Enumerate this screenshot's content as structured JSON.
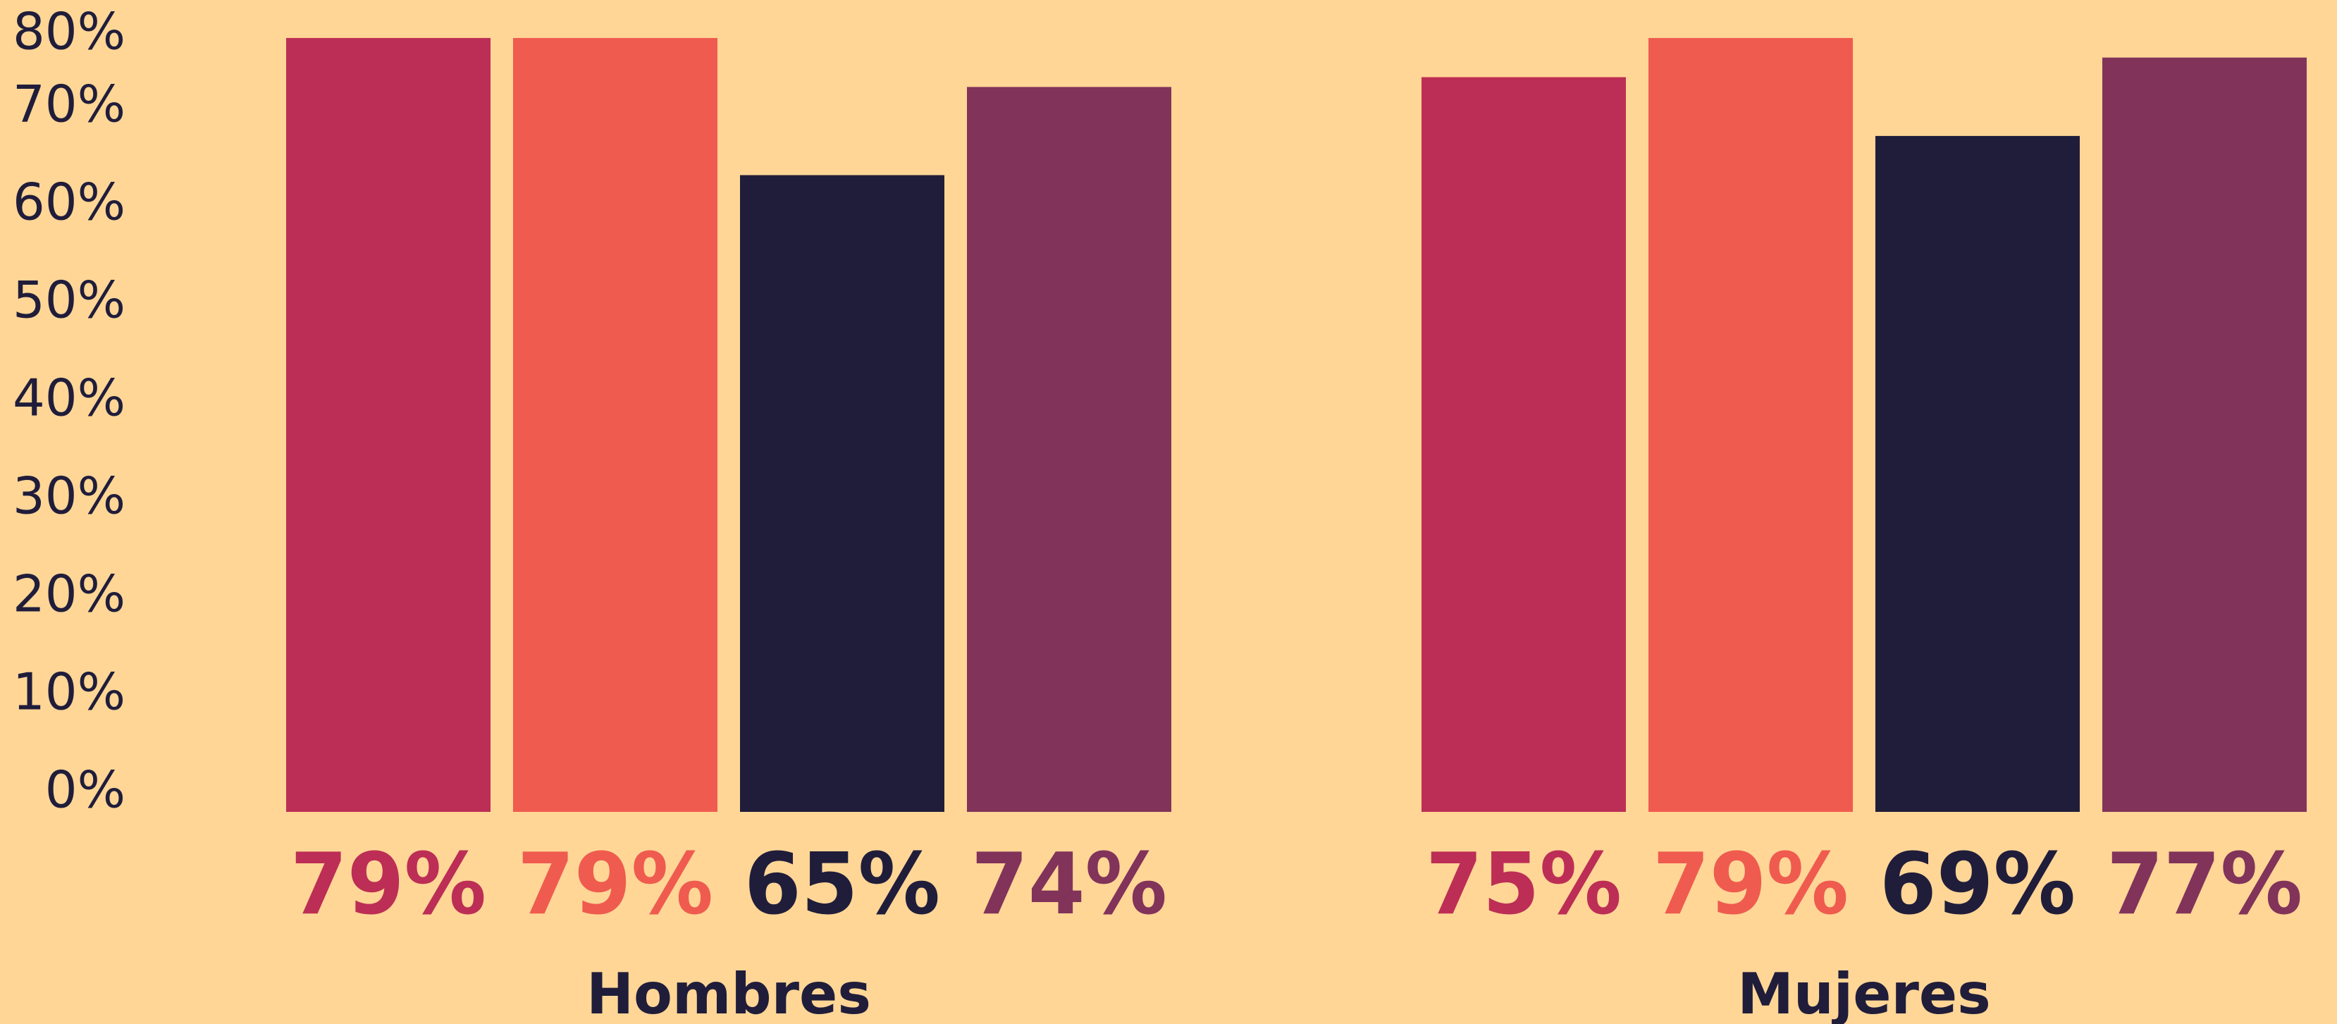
{
  "chart_data": {
    "type": "bar",
    "title": "",
    "xlabel": "",
    "ylabel": "",
    "categories": [
      "Hombres",
      "Mujeres"
    ],
    "series": [
      {
        "color": "#BC2E55",
        "values": [
          79,
          75
        ],
        "labels": [
          "79%",
          "75%"
        ]
      },
      {
        "color": "#EF5B4F",
        "values": [
          79,
          79
        ],
        "labels": [
          "79%",
          "79%"
        ]
      },
      {
        "color": "#201D3B",
        "values": [
          65,
          69
        ],
        "labels": [
          "65%",
          "69%"
        ]
      },
      {
        "color": "#81335A",
        "values": [
          74,
          77
        ],
        "labels": [
          "74%",
          "77%"
        ]
      }
    ],
    "ylim": [
      0,
      80
    ],
    "yticks": [
      "0%",
      "10%",
      "20%",
      "30%",
      "40%",
      "50%",
      "60%",
      "70%",
      "80%"
    ],
    "grid": false,
    "legend": "none",
    "background": "#FFD696"
  }
}
